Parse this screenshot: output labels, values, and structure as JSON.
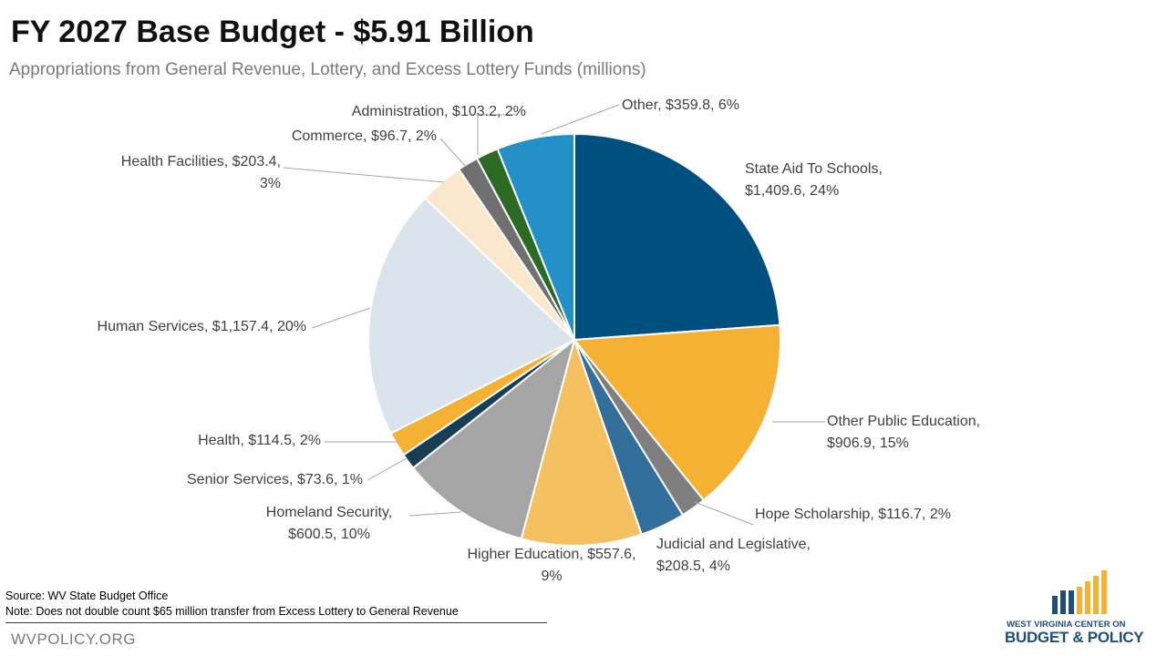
{
  "header": {
    "title": "FY 2027 Base Budget - $5.91 Billion",
    "subtitle": "Appropriations from General Revenue, Lottery, and Excess Lottery Funds (millions)"
  },
  "chart_data": {
    "type": "pie",
    "title": "FY 2027 Base Budget - $5.91 Billion",
    "subtitle": "Appropriations from General Revenue, Lottery, and Excess Lottery Funds (millions)",
    "slices": [
      {
        "name": "State Aid To Schools",
        "value": 1409.6,
        "percent": 24,
        "label_lines": [
          "State Aid To Schools,",
          "$1,409.6, 24%"
        ],
        "color": "#00507f"
      },
      {
        "name": "Other Public Education",
        "value": 906.9,
        "percent": 15,
        "label_lines": [
          "Other Public Education,",
          "$906.9, 15%"
        ],
        "color": "#f4b133"
      },
      {
        "name": "Hope Scholarship",
        "value": 116.7,
        "percent": 2,
        "label_lines": [
          "Hope Scholarship, $116.7, 2%"
        ],
        "color": "#7f7f7f"
      },
      {
        "name": "Judicial and Legislative",
        "value": 208.5,
        "percent": 4,
        "label_lines": [
          "Judicial and Legislative,",
          "$208.5, 4%"
        ],
        "color": "#326f9b"
      },
      {
        "name": "Higher Education",
        "value": 557.6,
        "percent": 9,
        "label_lines": [
          "Higher Education, $557.6,",
          "9%"
        ],
        "color": "#f5c160"
      },
      {
        "name": "Homeland Security",
        "value": 600.5,
        "percent": 10,
        "label_lines": [
          "Homeland Security,",
          "$600.5, 10%"
        ],
        "color": "#a5a5a5"
      },
      {
        "name": "Senior Services",
        "value": 73.6,
        "percent": 1,
        "label_lines": [
          "Senior Services, $73.6, 1%"
        ],
        "color": "#183e56"
      },
      {
        "name": "Health",
        "value": 114.5,
        "percent": 2,
        "label_lines": [
          "Health, $114.5, 2%"
        ],
        "color": "#f4b133"
      },
      {
        "name": "Human Services",
        "value": 1157.4,
        "percent": 20,
        "label_lines": [
          "Human Services, $1,157.4, 20%"
        ],
        "color": "#dbe4ec"
      },
      {
        "name": "Health Facilities",
        "value": 203.4,
        "percent": 3,
        "label_lines": [
          "Health Facilities, $203.4,",
          "3%"
        ],
        "color": "#fbe8cc"
      },
      {
        "name": "Commerce",
        "value": 96.7,
        "percent": 2,
        "label_lines": [
          "Commerce, $96.7, 2%"
        ],
        "color": "#707070"
      },
      {
        "name": "Administration",
        "value": 103.2,
        "percent": 2,
        "label_lines": [
          "Administration, $103.2, 2%"
        ],
        "color": "#2c6b24"
      },
      {
        "name": "Other",
        "value": 359.8,
        "percent": 6,
        "label_lines": [
          "Other, $359.8, 6%"
        ],
        "color": "#2390c8"
      }
    ]
  },
  "footer": {
    "source": "Source: WV State Budget Office",
    "note": "Note: Does not double count $65 million transfer from Excess Lottery to General Revenue",
    "site": "WVPOLICY.ORG"
  },
  "logo": {
    "line1": "WEST VIRGINIA CENTER ON",
    "line2": "BUDGET & POLICY",
    "colors": {
      "navy": "#1f4e79",
      "gold": "#f4b133"
    }
  }
}
